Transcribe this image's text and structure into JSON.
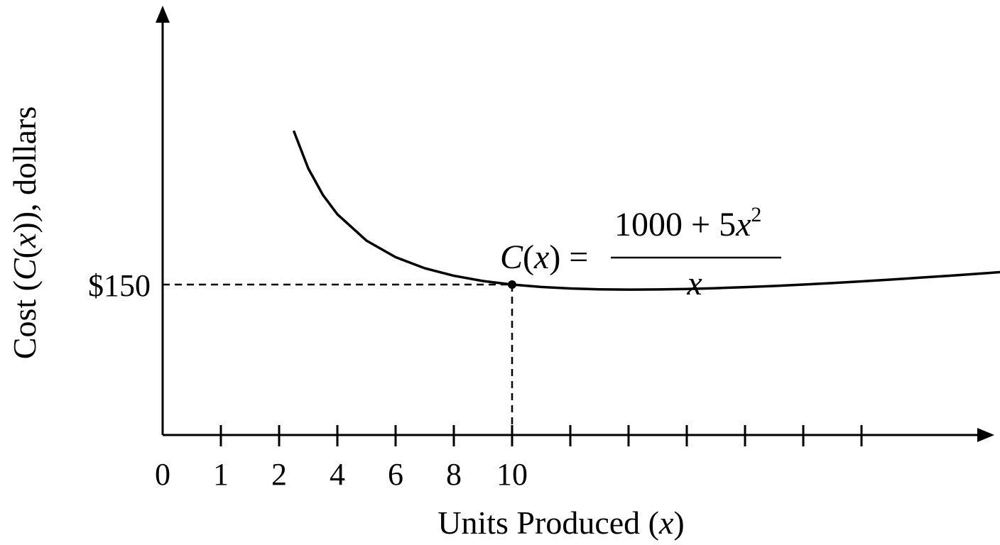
{
  "chart_data": {
    "type": "line",
    "title": "",
    "xlabel": {
      "prefix": "Units Produced (",
      "var": "x",
      "suffix": ")"
    },
    "ylabel": {
      "prefix": "Cost (",
      "func": "C",
      "open": "(",
      "var": "x",
      "suffix": ")), dollars"
    },
    "x_ticks": [
      {
        "value": 0,
        "label": "0"
      },
      {
        "value": 1,
        "label": "1"
      },
      {
        "value": 2,
        "label": "2"
      },
      {
        "value": 4,
        "label": "4"
      },
      {
        "value": 6,
        "label": "6"
      },
      {
        "value": 8,
        "label": "8"
      },
      {
        "value": 10,
        "label": "10"
      },
      {
        "value": 12,
        "label": ""
      },
      {
        "value": 14,
        "label": ""
      },
      {
        "value": 16,
        "label": ""
      },
      {
        "value": 18,
        "label": ""
      },
      {
        "value": 20,
        "label": ""
      },
      {
        "value": 22,
        "label": ""
      }
    ],
    "y_marker": {
      "value": 150,
      "label": "$150"
    },
    "highlight_point": {
      "x": 10,
      "y": 150
    },
    "function": {
      "label_lhs_func": "C",
      "label_lhs_open": "(",
      "label_lhs_var": "x",
      "label_lhs_close": ") =",
      "numerator_text": "1000 + 5",
      "numerator_var": "x",
      "numerator_exp": "2",
      "denominator": "x",
      "coefficients": {
        "a": 1000,
        "b": 5
      }
    },
    "series": [
      {
        "x": [
          2.5,
          3,
          3.5,
          4,
          5,
          6,
          7,
          8,
          9,
          10,
          11,
          12,
          13,
          14,
          15,
          16,
          17,
          18,
          19,
          20,
          21,
          22,
          23,
          24,
          25,
          26,
          27,
          28
        ],
        "y": [
          412.5,
          348.3,
          303.2,
          270,
          225,
          196.7,
          177.9,
          165,
          156.1,
          150,
          145.9,
          143.3,
          141.9,
          141.4,
          141.7,
          142.5,
          143.8,
          145.6,
          147.6,
          150,
          152.6,
          155.5,
          158.5,
          161.7,
          165,
          168.5,
          172,
          175.7
        ]
      }
    ],
    "xlim": [
      0,
      28
    ],
    "grid": false,
    "legend": "none",
    "line_color": "#000000"
  }
}
